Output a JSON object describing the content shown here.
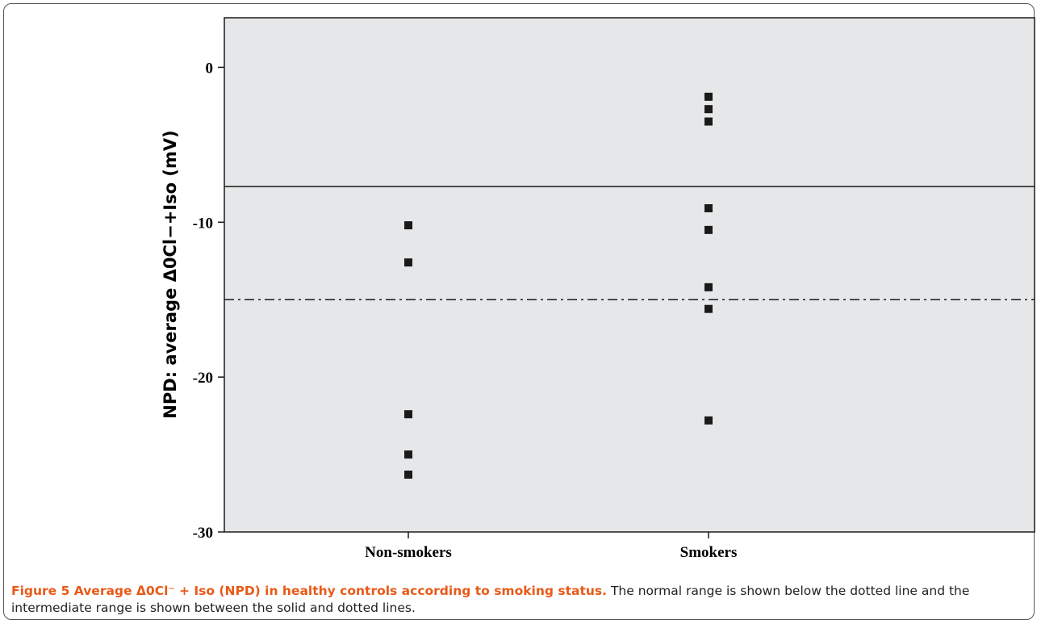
{
  "caption": {
    "title": "Figure 5 Average Δ0Cl⁻ + Iso (NPD) in healthy controls according to smoking status.",
    "text": " The normal range is shown below the dotted line and the intermediate range is shown between the solid and dotted lines."
  },
  "chart_data": {
    "type": "scatter",
    "title": "",
    "xlabel": "",
    "ylabel": "NPD: average Δ0Cl−+Iso (mV)",
    "categories": [
      "Non-smokers",
      "Smokers"
    ],
    "ylim": [
      -30,
      3.2
    ],
    "yticks": [
      0,
      -10,
      -20,
      -30
    ],
    "marker": "square",
    "colors": {
      "plot_bg": "#e6e7e8",
      "marker": "#1a1a1a",
      "line": "#1a1a1a",
      "caption_title": "#e85a18"
    },
    "series": [
      {
        "category": "Non-smokers",
        "values": [
          -10.2,
          -12.6,
          -22.4,
          -25.0,
          -26.3
        ]
      },
      {
        "category": "Smokers",
        "values": [
          -1.9,
          -2.7,
          -3.5,
          -9.1,
          -10.5,
          -14.2,
          -15.6,
          -22.8
        ]
      }
    ],
    "reference_lines": [
      {
        "value": -7.7,
        "style": "solid"
      },
      {
        "value": -15.0,
        "style": "dash-dot"
      }
    ],
    "grid": false,
    "legend": "none"
  }
}
